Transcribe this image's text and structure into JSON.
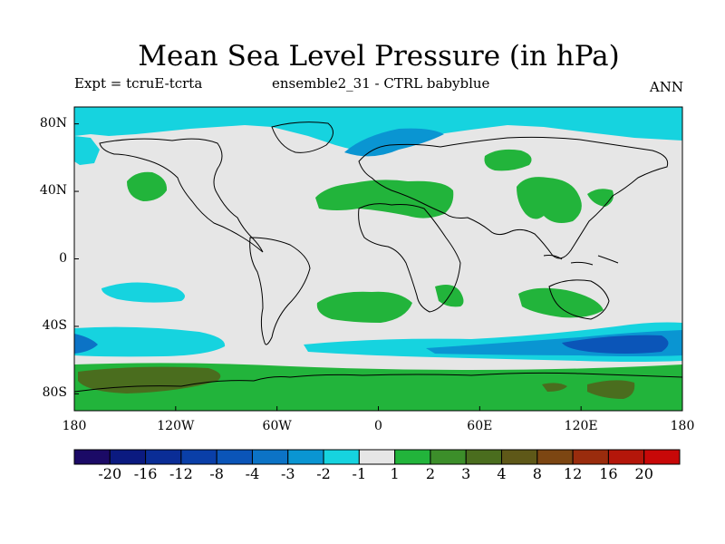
{
  "title": "Mean Sea Level Pressure (in hPa)",
  "subtitle_left": "Expt = tcruE-tcrta",
  "subtitle_center": "ensemble2_31 - CTRL babyblue",
  "subtitle_right": "ANN",
  "lat_ticks": [
    "80N",
    "40N",
    "0",
    "40S",
    "80S"
  ],
  "lon_ticks": [
    "180",
    "120W",
    "60W",
    "0",
    "60E",
    "120E",
    "180"
  ],
  "colorbar": {
    "labels": [
      "-20",
      "-16",
      "-12",
      "-8",
      "-4",
      "-3",
      "-2",
      "-1",
      "1",
      "2",
      "3",
      "4",
      "8",
      "12",
      "16",
      "20"
    ],
    "colors": [
      "#1b0a66",
      "#0b1a80",
      "#0a2d96",
      "#0a3fa8",
      "#0b55b8",
      "#0c73c6",
      "#0a95d2",
      "#16d3df",
      "#e6e6e6",
      "#22b43b",
      "#3c8e2a",
      "#4a6d1e",
      "#5e5818",
      "#7c4612",
      "#9a2c0d",
      "#b4160a",
      "#c80808"
    ]
  },
  "colors": {
    "neutral": "#e6e6e6",
    "light_blue": "#16d3df",
    "mid_blue": "#0a95d2",
    "blue": "#0c73c6",
    "dark_blue": "#0b55b8",
    "green": "#22b43b",
    "dark_green": "#4a6d1e"
  }
}
